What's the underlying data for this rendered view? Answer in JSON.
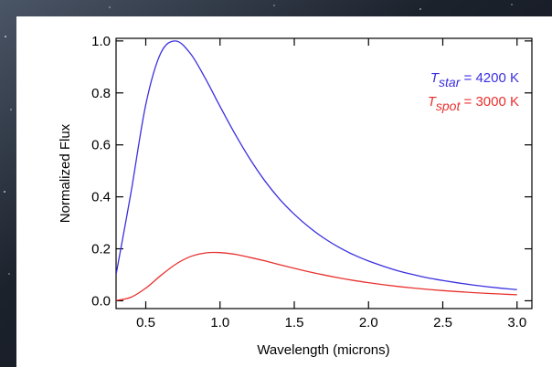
{
  "chart_data": {
    "type": "line",
    "x_label": "Wavelength (microns)",
    "y_label": "Normalized Flux",
    "xlim": [
      0.3,
      3.1
    ],
    "ylim": [
      -0.03,
      1.01
    ],
    "xticks": [
      {
        "value": 0.5,
        "label": "0.5"
      },
      {
        "value": 1.0,
        "label": "1.0"
      },
      {
        "value": 1.5,
        "label": "1.5"
      },
      {
        "value": 2.0,
        "label": "2.0"
      },
      {
        "value": 2.5,
        "label": "2.5"
      },
      {
        "value": 3.0,
        "label": "3.0"
      }
    ],
    "yticks": [
      {
        "value": 0.0,
        "label": "0.0"
      },
      {
        "value": 0.2,
        "label": "0.2"
      },
      {
        "value": 0.4,
        "label": "0.4"
      },
      {
        "value": 0.6,
        "label": "0.6"
      },
      {
        "value": 0.8,
        "label": "0.8"
      },
      {
        "value": 1.0,
        "label": "1.0"
      }
    ],
    "x": [
      0.3,
      0.4,
      0.5,
      0.6,
      0.7,
      0.8,
      0.9,
      1.0,
      1.1,
      1.2,
      1.3,
      1.4,
      1.5,
      1.6,
      1.7,
      1.8,
      1.9,
      2.0,
      2.1,
      2.2,
      2.3,
      2.4,
      2.5,
      2.6,
      2.7,
      2.8,
      2.9,
      3.0
    ],
    "series": [
      {
        "name_symbol": "T",
        "name_subscript": "star",
        "name_rest": " = 4200 K",
        "color": "#3a2fe0",
        "values": [
          0.101,
          0.415,
          0.755,
          0.952,
          1.0,
          0.952,
          0.857,
          0.748,
          0.643,
          0.547,
          0.463,
          0.392,
          0.333,
          0.283,
          0.241,
          0.206,
          0.177,
          0.153,
          0.133,
          0.115,
          0.101,
          0.088,
          0.078,
          0.069,
          0.061,
          0.054,
          0.048,
          0.043
        ]
      },
      {
        "name_symbol": "T",
        "name_subscript": "spot",
        "name_rest": " = 3000 K",
        "color": "#e8312f",
        "values": [
          0.001,
          0.0135,
          0.0486,
          0.0967,
          0.14,
          0.17,
          0.184,
          0.1855,
          0.179,
          0.167,
          0.154,
          0.139,
          0.125,
          0.1115,
          0.0993,
          0.0882,
          0.0783,
          0.0696,
          0.0618,
          0.055,
          0.0491,
          0.0439,
          0.0392,
          0.0352,
          0.0316,
          0.0285,
          0.0257,
          0.0232
        ]
      }
    ]
  }
}
